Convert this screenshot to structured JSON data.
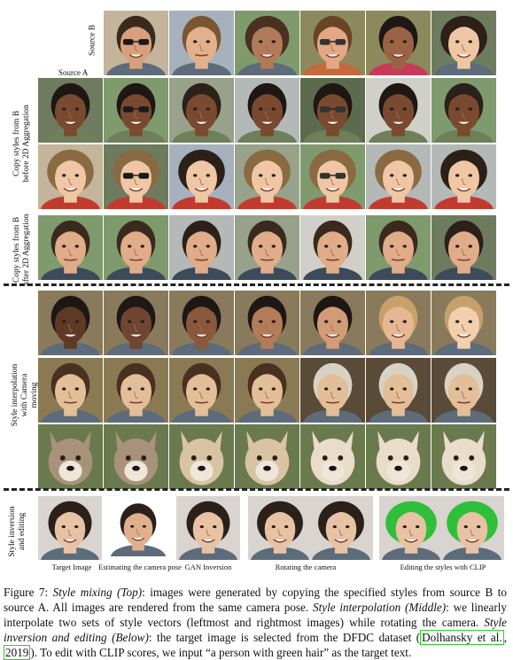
{
  "labels": {
    "source_b": "Source B",
    "source_a": "Source A",
    "row_before_2d": "Copy styles from B before 2D Aggregation",
    "row_after_2d": "Copy styles from B after 2D Aggregation",
    "interp": "Style interpolation with Camera moving",
    "inversion": "Style inversion and editing"
  },
  "bottom_labels": {
    "target": "Target Image",
    "camera_pose": "Estimating the camera pose",
    "gan_inversion": "GAN Inversion",
    "rotating": "Rotating the camera",
    "editing": "Editing the styles with CLIP"
  },
  "caption": {
    "fig": "Figure 7:",
    "t1": "Style mixing (Top)",
    "t2": ": images were generated by copying the specified styles from source B to source A. All images are rendered from the same camera pose.",
    "t3": "Style interpolation (Middle)",
    "t4": ": we linearly interpolate two sets of style vectors (leftmost and rightmost images) while rotating the camera.",
    "t5": "Style inversion and editing (Below)",
    "t6": ": the target image is selected from the DFDC dataset (",
    "cite1": "Dolhansky et al.",
    "t7": ", ",
    "cite2": "2019",
    "t8": "). To edit with CLIP scores, we input “a person with green hair” as the target text."
  }
}
